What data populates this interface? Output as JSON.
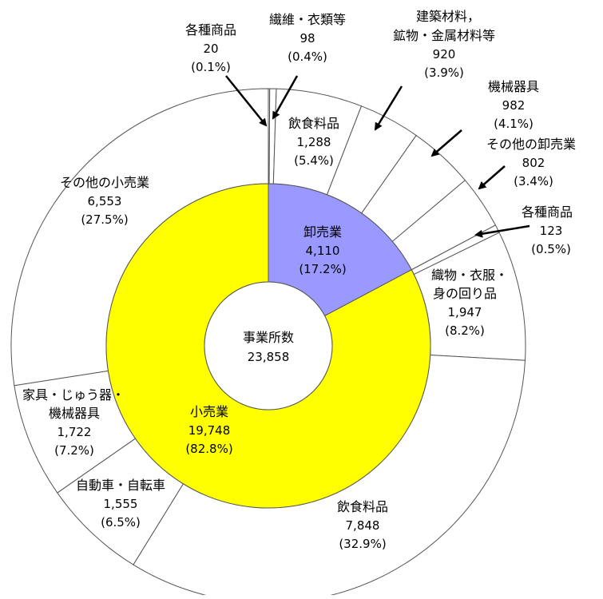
{
  "chart_data": {
    "type": "pie",
    "center": {
      "label": "事業所数",
      "value": "23,858"
    },
    "inner": [
      {
        "name": "卸売業",
        "value": 4110,
        "value_text": "4,110",
        "pct": "(17.2%)",
        "color": "#9999ff"
      },
      {
        "name": "小売業",
        "value": 19748,
        "value_text": "19,748",
        "pct": "(82.8%)",
        "color": "#ffff00"
      }
    ],
    "outer": [
      {
        "name": "各種商品",
        "value": 123,
        "value_text": "123",
        "pct": "(0.5%)"
      },
      {
        "name": "織物・衣服・身の回り品",
        "lines": [
          "織物・衣服・",
          "身の回り品"
        ],
        "value": 1947,
        "value_text": "1,947",
        "pct": "(8.2%)"
      },
      {
        "name": "飲食料品",
        "value": 7848,
        "value_text": "7,848",
        "pct": "(32.9%)"
      },
      {
        "name": "自動車・自転車",
        "value": 1555,
        "value_text": "1,555",
        "pct": "(6.5%)"
      },
      {
        "name": "家具・じゅう器・機械器具",
        "lines": [
          "家具・じゅう器・",
          "機械器具"
        ],
        "value": 1722,
        "value_text": "1,722",
        "pct": "(7.2%)"
      },
      {
        "name": "その他の小売業",
        "value": 6553,
        "value_text": "6,553",
        "pct": "(27.5%)"
      },
      {
        "name": "各種商品",
        "value": 20,
        "value_text": "20",
        "pct": "(0.1%)"
      },
      {
        "name": "繊維・衣類等",
        "value": 98,
        "value_text": "98",
        "pct": "(0.4%)"
      },
      {
        "name": "飲食料品",
        "value": 1288,
        "value_text": "1,288",
        "pct": "(5.4%)"
      },
      {
        "name": "建築材料，鉱物・金属材料等",
        "lines": [
          "建築材料，",
          "鉱物・金属材料等"
        ],
        "value": 920,
        "value_text": "920",
        "pct": "(3.9%)"
      },
      {
        "name": "機械器具",
        "value": 982,
        "value_text": "982",
        "pct": "(4.1%)"
      },
      {
        "name": "その他の卸売業",
        "value": 802,
        "value_text": "802",
        "pct": "(3.4%)"
      }
    ]
  }
}
